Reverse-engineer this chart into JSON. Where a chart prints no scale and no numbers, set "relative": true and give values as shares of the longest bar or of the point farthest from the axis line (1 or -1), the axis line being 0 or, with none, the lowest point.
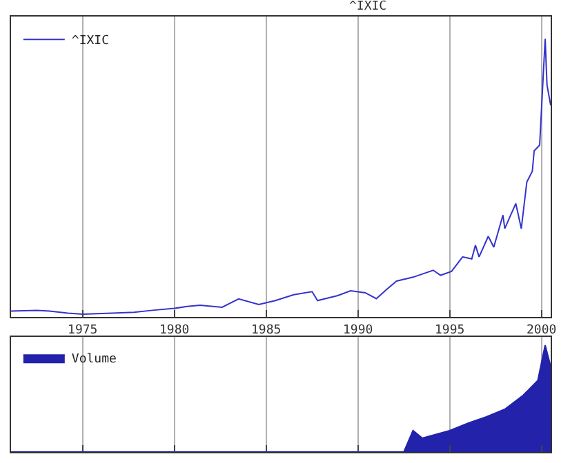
{
  "chart_data": [
    {
      "type": "line",
      "title": "^IXIC",
      "relative": true,
      "grid": "x",
      "legend": "top left",
      "xlim": [
        1971.1,
        2000.5
      ],
      "xticks": [
        1975,
        1980,
        1985,
        1990,
        1995,
        2000
      ],
      "series": [
        {
          "name": "^IXIC",
          "color": "#3333cc",
          "x": [
            1971.1,
            1972.5,
            1973.2,
            1974.2,
            1975,
            1976.6,
            1977.8,
            1978.8,
            1980,
            1980.7,
            1981.4,
            1982.6,
            1983.5,
            1984.6,
            1985.5,
            1986.5,
            1987.5,
            1987.8,
            1988.9,
            1989.6,
            1990.4,
            1991,
            1991.6,
            1992.1,
            1993,
            1994.1,
            1994.5,
            1995.1,
            1995.7,
            1996.2,
            1996.4,
            1996.6,
            1997.1,
            1997.4,
            1997.9,
            1998.0,
            1998.6,
            1998.9,
            1999.2,
            1999.5,
            1999.6,
            1999.9,
            2000.0,
            2000.2,
            2000.3,
            2000.5
          ],
          "values": [
            0.021,
            0.024,
            0.021,
            0.014,
            0.01,
            0.014,
            0.017,
            0.024,
            0.031,
            0.038,
            0.042,
            0.035,
            0.065,
            0.045,
            0.059,
            0.08,
            0.091,
            0.059,
            0.077,
            0.094,
            0.087,
            0.066,
            0.101,
            0.129,
            0.143,
            0.168,
            0.15,
            0.164,
            0.216,
            0.209,
            0.258,
            0.216,
            0.29,
            0.251,
            0.366,
            0.318,
            0.408,
            0.318,
            0.485,
            0.524,
            0.597,
            0.618,
            0.747,
            1.0,
            0.834,
            0.761
          ]
        }
      ]
    },
    {
      "type": "area",
      "relative": true,
      "grid": "x",
      "legend": "top left",
      "tick_labels": false,
      "xlim": [
        1971.1,
        2000.5
      ],
      "xticks": [
        1975,
        1980,
        1985,
        1990,
        1995,
        2000
      ],
      "series": [
        {
          "name": "Volume",
          "color": "#2222aa",
          "x": [
            1971.1,
            1992.5,
            1993,
            1993.5,
            1995,
            1996,
            1997,
            1998,
            1999,
            1999.8,
            2000.2,
            2000.5
          ],
          "values": [
            0,
            0,
            0.2,
            0.13,
            0.2,
            0.27,
            0.33,
            0.4,
            0.53,
            0.67,
            1.0,
            0.8
          ]
        }
      ]
    }
  ]
}
